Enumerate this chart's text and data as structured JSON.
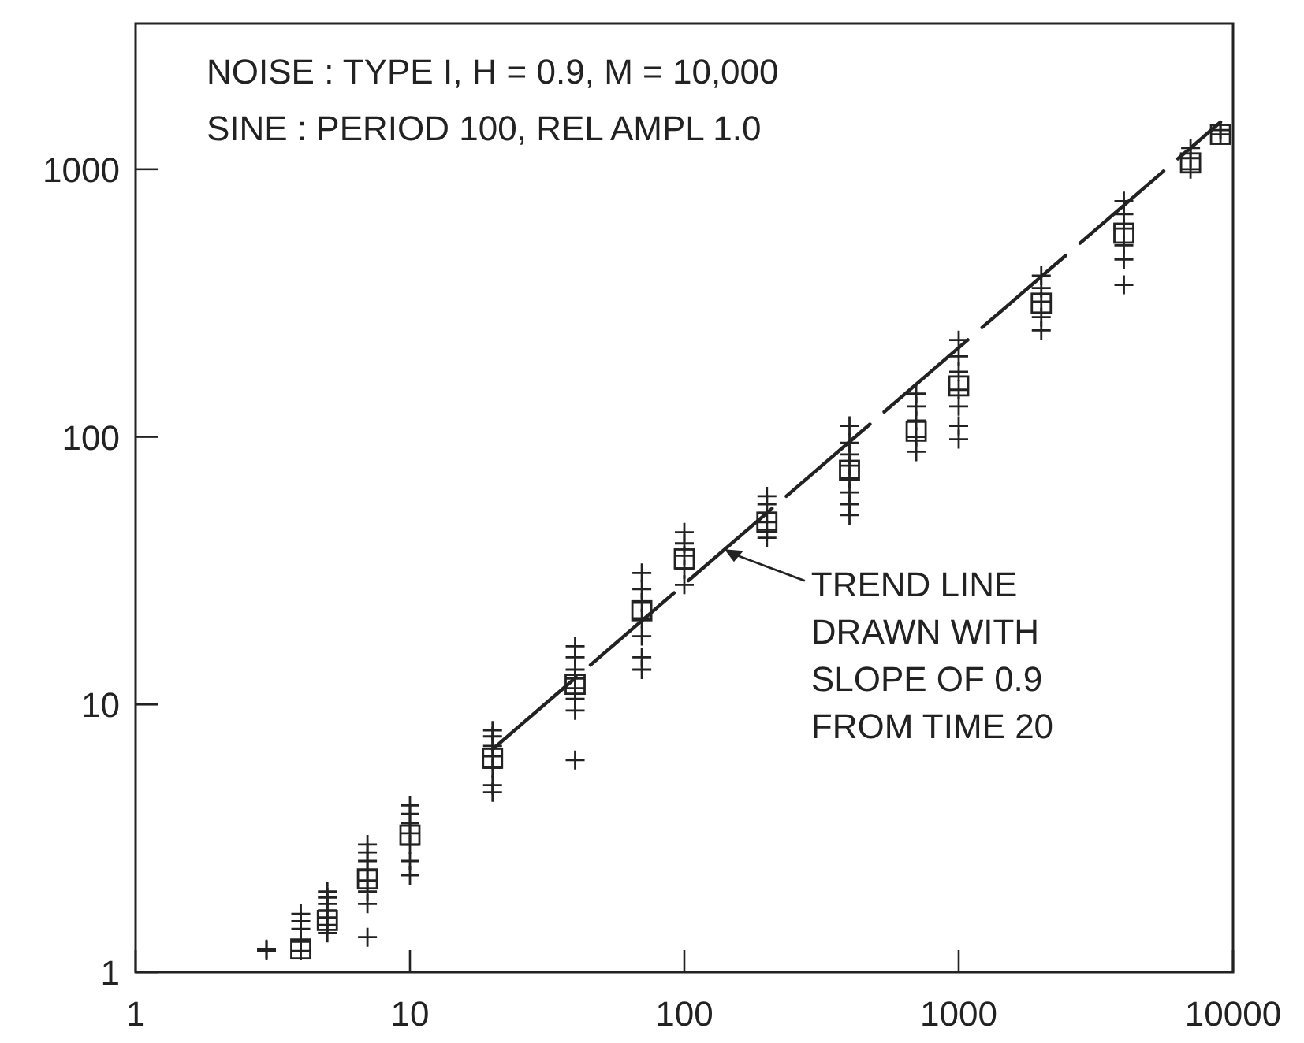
{
  "chart_data": {
    "type": "scatter",
    "annotations": [
      "NOISE : TYPE I, H = 0.9, M = 10,000",
      "SINE : PERIOD 100, REL AMPL 1.0",
      {
        "text": "TREND LINE\nDRAWN WITH\nSLOPE OF 0.9\nFROM TIME 20",
        "x": 140,
        "y": 38
      }
    ],
    "log": "xy",
    "grid": false,
    "xlim": [
      1,
      10000
    ],
    "xticks": [
      1,
      10,
      100,
      1000,
      10000
    ],
    "ylim": [
      1,
      3500
    ],
    "yticks": [
      1,
      10,
      100,
      1000
    ],
    "series": [
      {
        "marker": "cross",
        "color": "#222222",
        "x": [
          3,
          3,
          4,
          4,
          4,
          4,
          4,
          5,
          5,
          5,
          5,
          5,
          5,
          5,
          7,
          7,
          7,
          7,
          7,
          7,
          7,
          7,
          10,
          10,
          10,
          10,
          10,
          10,
          10,
          20,
          20,
          20,
          20,
          20,
          20,
          20,
          40,
          40,
          40,
          40,
          40,
          40,
          40,
          40,
          70,
          70,
          70,
          70,
          70,
          70,
          70,
          100,
          100,
          100,
          100,
          100,
          200,
          200,
          200,
          200,
          200,
          200,
          400,
          400,
          400,
          400,
          400,
          400,
          400,
          400,
          700,
          700,
          700,
          700,
          700,
          1000,
          1000,
          1000,
          1000,
          1000,
          1000,
          1000,
          2000,
          2000,
          2000,
          2000,
          2000,
          4000,
          4000,
          4000,
          4000,
          4000,
          4000,
          7000,
          7000,
          7000,
          9000,
          9000
        ],
        "values": [
          1.2,
          1.22,
          1.2,
          1.3,
          1.45,
          1.55,
          1.65,
          1.4,
          1.5,
          1.6,
          1.7,
          1.8,
          1.9,
          2.0,
          1.35,
          1.8,
          2.0,
          2.2,
          2.4,
          2.6,
          2.8,
          3.0,
          2.3,
          2.6,
          3.0,
          3.3,
          3.6,
          3.9,
          4.2,
          4.7,
          5.0,
          5.8,
          6.4,
          7.0,
          7.6,
          8.0,
          6.2,
          9.5,
          10.5,
          11.5,
          12.5,
          13.5,
          15,
          16.5,
          13.5,
          15,
          18,
          21,
          24,
          27,
          31,
          28,
          32,
          36,
          40,
          44,
          42,
          45,
          48,
          52,
          56,
          60,
          51,
          56,
          62,
          70,
          78,
          86,
          95,
          110,
          88,
          100,
          115,
          130,
          145,
          98,
          110,
          130,
          150,
          175,
          200,
          230,
          250,
          280,
          320,
          360,
          400,
          370,
          460,
          520,
          600,
          680,
          760,
          1000,
          1100,
          1200,
          1350,
          1400
        ]
      },
      {
        "marker": "square",
        "color": "#222222",
        "x": [
          4,
          5,
          7,
          10,
          20,
          40,
          70,
          100,
          200,
          400,
          700,
          1000,
          2000,
          4000,
          7000,
          9000
        ],
        "values": [
          1.22,
          1.56,
          2.23,
          3.25,
          6.3,
          11.9,
          22.4,
          35,
          48,
          75,
          105,
          155,
          316,
          577,
          1056,
          1350
        ]
      },
      {
        "type": "line",
        "line_style": "dashed",
        "color": "#222222",
        "x": [
          20,
          9000
        ],
        "values": [
          6.8,
          1500
        ]
      }
    ]
  }
}
